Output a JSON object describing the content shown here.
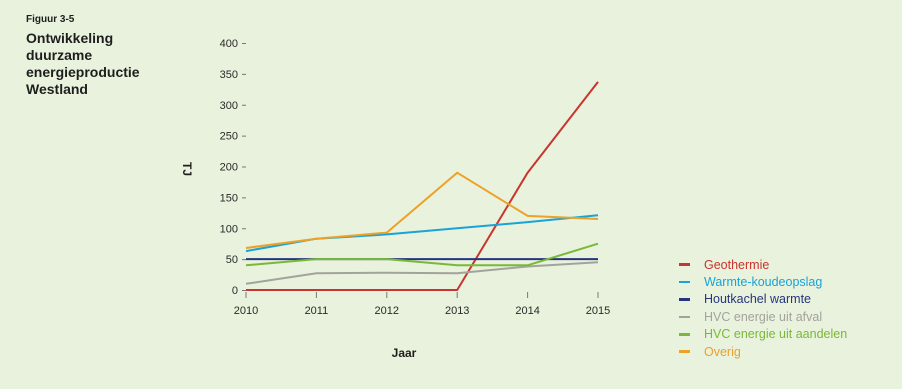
{
  "figure": {
    "label": "Figuur 3-5",
    "title": "Ontwikkeling\nduurzame\nenergieproductie\nWestland"
  },
  "chart_data": {
    "type": "line",
    "title": "Ontwikkeling duurzame energieproductie Westland",
    "xlabel": "Jaar",
    "ylabel": "TJ",
    "x": [
      2010,
      2011,
      2012,
      2013,
      2014,
      2015
    ],
    "ylim": [
      0,
      400
    ],
    "yticks": [
      0,
      50,
      100,
      150,
      200,
      250,
      300,
      350,
      400
    ],
    "grid": false,
    "legend_position": "bottom-right",
    "series": [
      {
        "name": "Geothermie",
        "color": "#c8352e",
        "values": [
          0,
          0,
          0,
          0,
          190,
          337
        ]
      },
      {
        "name": "Warmte-koudeopslag",
        "color": "#1aa3d6",
        "values": [
          63,
          83,
          90,
          100,
          110,
          121
        ]
      },
      {
        "name": "Houtkachel warmte",
        "color": "#27357e",
        "values": [
          50,
          50,
          50,
          50,
          50,
          50
        ]
      },
      {
        "name": "HVC energie uit afval",
        "color": "#a3a39e",
        "values": [
          10,
          27,
          28,
          27,
          38,
          45
        ]
      },
      {
        "name": "HVC energie uit aandelen",
        "color": "#7ab83a",
        "values": [
          40,
          50,
          50,
          40,
          40,
          75
        ]
      },
      {
        "name": "Overig",
        "color": "#eda127",
        "values": [
          68,
          83,
          93,
          190,
          120,
          115
        ]
      }
    ]
  }
}
